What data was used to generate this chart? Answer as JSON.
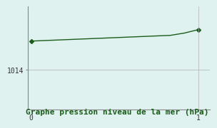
{
  "x": [
    0,
    0.083,
    0.167,
    0.25,
    0.333,
    0.417,
    0.5,
    0.583,
    0.667,
    0.75,
    0.833,
    0.917,
    1.0
  ],
  "y": [
    1016.5,
    1016.55,
    1016.6,
    1016.65,
    1016.7,
    1016.75,
    1016.8,
    1016.85,
    1016.9,
    1016.95,
    1017.0,
    1017.2,
    1017.5
  ],
  "line_color": "#1a5c1a",
  "marker": "D",
  "marker_size": 3,
  "background_color": "#dff2ef",
  "grid_color": "#b0b0b0",
  "xlabel": "Graphe pression niveau de la mer (hPa)",
  "xlabel_color": "#1a5c1a",
  "xlabel_fontsize": 8,
  "ytick_label": "1014",
  "ytick_value": 1014,
  "xtick_values": [
    0,
    1
  ],
  "xlim": [
    -0.02,
    1.07
  ],
  "ylim": [
    1010.5,
    1019.5
  ],
  "spine_color": "#888888"
}
